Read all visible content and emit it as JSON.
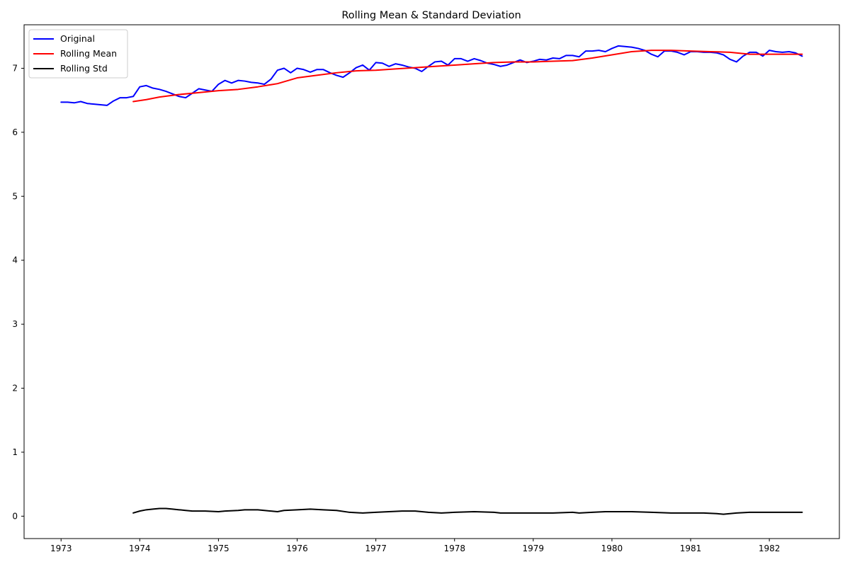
{
  "chart_data": {
    "type": "line",
    "title": "Rolling Mean & Standard Deviation",
    "xlabel": "",
    "ylabel": "",
    "xlim": [
      1972.53,
      1982.89
    ],
    "ylim": [
      -0.35,
      7.68
    ],
    "x_ticks": [
      "1973",
      "1974",
      "1975",
      "1976",
      "1977",
      "1978",
      "1979",
      "1980",
      "1981",
      "1982"
    ],
    "y_ticks": [
      "0",
      "1",
      "2",
      "3",
      "4",
      "5",
      "6",
      "7"
    ],
    "grid": false,
    "legend_position": "top-left",
    "legend": [
      "Original",
      "Rolling Mean",
      "Rolling Std"
    ],
    "series": [
      {
        "name": "Original",
        "color": "#0000ff",
        "points": [
          [
            1973.0,
            6.47
          ],
          [
            1973.083,
            6.47
          ],
          [
            1973.167,
            6.46
          ],
          [
            1973.25,
            6.48
          ],
          [
            1973.333,
            6.45
          ],
          [
            1973.417,
            6.44
          ],
          [
            1973.5,
            6.43
          ],
          [
            1973.583,
            6.42
          ],
          [
            1973.667,
            6.49
          ],
          [
            1973.75,
            6.54
          ],
          [
            1973.833,
            6.54
          ],
          [
            1973.917,
            6.56
          ],
          [
            1974.0,
            6.71
          ],
          [
            1974.083,
            6.73
          ],
          [
            1974.167,
            6.69
          ],
          [
            1974.25,
            6.67
          ],
          [
            1974.333,
            6.64
          ],
          [
            1974.417,
            6.6
          ],
          [
            1974.5,
            6.56
          ],
          [
            1974.583,
            6.54
          ],
          [
            1974.667,
            6.61
          ],
          [
            1974.75,
            6.68
          ],
          [
            1974.833,
            6.66
          ],
          [
            1974.917,
            6.64
          ],
          [
            1975.0,
            6.75
          ],
          [
            1975.083,
            6.81
          ],
          [
            1975.167,
            6.77
          ],
          [
            1975.25,
            6.81
          ],
          [
            1975.333,
            6.8
          ],
          [
            1975.417,
            6.78
          ],
          [
            1975.5,
            6.77
          ],
          [
            1975.583,
            6.75
          ],
          [
            1975.667,
            6.83
          ],
          [
            1975.75,
            6.97
          ],
          [
            1975.833,
            7.0
          ],
          [
            1975.917,
            6.93
          ],
          [
            1976.0,
            7.0
          ],
          [
            1976.083,
            6.98
          ],
          [
            1976.167,
            6.94
          ],
          [
            1976.25,
            6.98
          ],
          [
            1976.333,
            6.98
          ],
          [
            1976.417,
            6.93
          ],
          [
            1976.5,
            6.89
          ],
          [
            1976.583,
            6.86
          ],
          [
            1976.667,
            6.93
          ],
          [
            1976.75,
            7.01
          ],
          [
            1976.833,
            7.05
          ],
          [
            1976.917,
            6.97
          ],
          [
            1977.0,
            7.09
          ],
          [
            1977.083,
            7.08
          ],
          [
            1977.167,
            7.03
          ],
          [
            1977.25,
            7.07
          ],
          [
            1977.333,
            7.05
          ],
          [
            1977.417,
            7.02
          ],
          [
            1977.5,
            7.0
          ],
          [
            1977.583,
            6.95
          ],
          [
            1977.667,
            7.03
          ],
          [
            1977.75,
            7.1
          ],
          [
            1977.833,
            7.11
          ],
          [
            1977.917,
            7.05
          ],
          [
            1978.0,
            7.15
          ],
          [
            1978.083,
            7.15
          ],
          [
            1978.167,
            7.11
          ],
          [
            1978.25,
            7.15
          ],
          [
            1978.333,
            7.12
          ],
          [
            1978.417,
            7.08
          ],
          [
            1978.5,
            7.06
          ],
          [
            1978.583,
            7.03
          ],
          [
            1978.667,
            7.05
          ],
          [
            1978.75,
            7.09
          ],
          [
            1978.833,
            7.13
          ],
          [
            1978.917,
            7.09
          ],
          [
            1979.0,
            7.11
          ],
          [
            1979.083,
            7.14
          ],
          [
            1979.167,
            7.13
          ],
          [
            1979.25,
            7.16
          ],
          [
            1979.333,
            7.15
          ],
          [
            1979.417,
            7.2
          ],
          [
            1979.5,
            7.2
          ],
          [
            1979.583,
            7.18
          ],
          [
            1979.667,
            7.27
          ],
          [
            1979.75,
            7.27
          ],
          [
            1979.833,
            7.28
          ],
          [
            1979.917,
            7.26
          ],
          [
            1980.0,
            7.31
          ],
          [
            1980.083,
            7.35
          ],
          [
            1980.167,
            7.34
          ],
          [
            1980.25,
            7.33
          ],
          [
            1980.333,
            7.31
          ],
          [
            1980.417,
            7.28
          ],
          [
            1980.5,
            7.22
          ],
          [
            1980.583,
            7.18
          ],
          [
            1980.667,
            7.27
          ],
          [
            1980.75,
            7.27
          ],
          [
            1980.833,
            7.25
          ],
          [
            1980.917,
            7.21
          ],
          [
            1981.0,
            7.26
          ],
          [
            1981.083,
            7.26
          ],
          [
            1981.167,
            7.25
          ],
          [
            1981.25,
            7.25
          ],
          [
            1981.333,
            7.24
          ],
          [
            1981.417,
            7.21
          ],
          [
            1981.5,
            7.14
          ],
          [
            1981.583,
            7.1
          ],
          [
            1981.667,
            7.19
          ],
          [
            1981.75,
            7.25
          ],
          [
            1981.833,
            7.25
          ],
          [
            1981.917,
            7.19
          ],
          [
            1982.0,
            7.28
          ],
          [
            1982.083,
            7.26
          ],
          [
            1982.167,
            7.25
          ],
          [
            1982.25,
            7.26
          ],
          [
            1982.333,
            7.24
          ],
          [
            1982.417,
            7.19
          ]
        ]
      },
      {
        "name": "Rolling Mean",
        "color": "#ff0000",
        "points": [
          [
            1973.917,
            6.48
          ],
          [
            1974.083,
            6.51
          ],
          [
            1974.25,
            6.55
          ],
          [
            1974.5,
            6.59
          ],
          [
            1974.75,
            6.62
          ],
          [
            1975.0,
            6.65
          ],
          [
            1975.25,
            6.67
          ],
          [
            1975.5,
            6.71
          ],
          [
            1975.75,
            6.76
          ],
          [
            1976.0,
            6.85
          ],
          [
            1976.25,
            6.89
          ],
          [
            1976.5,
            6.93
          ],
          [
            1976.75,
            6.96
          ],
          [
            1977.0,
            6.97
          ],
          [
            1977.25,
            6.99
          ],
          [
            1977.5,
            7.01
          ],
          [
            1977.75,
            7.03
          ],
          [
            1978.0,
            7.05
          ],
          [
            1978.25,
            7.07
          ],
          [
            1978.5,
            7.09
          ],
          [
            1978.75,
            7.1
          ],
          [
            1979.0,
            7.1
          ],
          [
            1979.25,
            7.11
          ],
          [
            1979.5,
            7.12
          ],
          [
            1979.75,
            7.16
          ],
          [
            1980.0,
            7.21
          ],
          [
            1980.25,
            7.26
          ],
          [
            1980.5,
            7.28
          ],
          [
            1980.75,
            7.28
          ],
          [
            1981.0,
            7.27
          ],
          [
            1981.25,
            7.26
          ],
          [
            1981.5,
            7.25
          ],
          [
            1981.75,
            7.22
          ],
          [
            1982.0,
            7.22
          ],
          [
            1982.25,
            7.22
          ],
          [
            1982.417,
            7.22
          ]
        ]
      },
      {
        "name": "Rolling Std",
        "color": "#000000",
        "points": [
          [
            1973.917,
            0.05
          ],
          [
            1974.0,
            0.08
          ],
          [
            1974.083,
            0.1
          ],
          [
            1974.167,
            0.11
          ],
          [
            1974.25,
            0.12
          ],
          [
            1974.333,
            0.12
          ],
          [
            1974.417,
            0.11
          ],
          [
            1974.5,
            0.1
          ],
          [
            1974.583,
            0.09
          ],
          [
            1974.667,
            0.08
          ],
          [
            1974.833,
            0.08
          ],
          [
            1975.0,
            0.07
          ],
          [
            1975.083,
            0.08
          ],
          [
            1975.25,
            0.09
          ],
          [
            1975.333,
            0.1
          ],
          [
            1975.5,
            0.1
          ],
          [
            1975.583,
            0.09
          ],
          [
            1975.667,
            0.08
          ],
          [
            1975.75,
            0.07
          ],
          [
            1975.833,
            0.09
          ],
          [
            1976.0,
            0.1
          ],
          [
            1976.167,
            0.11
          ],
          [
            1976.333,
            0.1
          ],
          [
            1976.5,
            0.09
          ],
          [
            1976.667,
            0.06
          ],
          [
            1976.833,
            0.05
          ],
          [
            1977.0,
            0.06
          ],
          [
            1977.167,
            0.07
          ],
          [
            1977.333,
            0.08
          ],
          [
            1977.5,
            0.08
          ],
          [
            1977.667,
            0.06
          ],
          [
            1977.833,
            0.05
          ],
          [
            1978.0,
            0.06
          ],
          [
            1978.25,
            0.07
          ],
          [
            1978.5,
            0.06
          ],
          [
            1978.583,
            0.05
          ],
          [
            1978.833,
            0.05
          ],
          [
            1979.0,
            0.05
          ],
          [
            1979.25,
            0.05
          ],
          [
            1979.5,
            0.06
          ],
          [
            1979.583,
            0.05
          ],
          [
            1979.75,
            0.06
          ],
          [
            1979.917,
            0.07
          ],
          [
            1980.083,
            0.07
          ],
          [
            1980.25,
            0.07
          ],
          [
            1980.5,
            0.06
          ],
          [
            1980.75,
            0.05
          ],
          [
            1981.0,
            0.05
          ],
          [
            1981.167,
            0.05
          ],
          [
            1981.333,
            0.04
          ],
          [
            1981.417,
            0.03
          ],
          [
            1981.5,
            0.04
          ],
          [
            1981.583,
            0.05
          ],
          [
            1981.75,
            0.06
          ],
          [
            1982.0,
            0.06
          ],
          [
            1982.25,
            0.06
          ],
          [
            1982.417,
            0.06
          ]
        ]
      }
    ]
  }
}
